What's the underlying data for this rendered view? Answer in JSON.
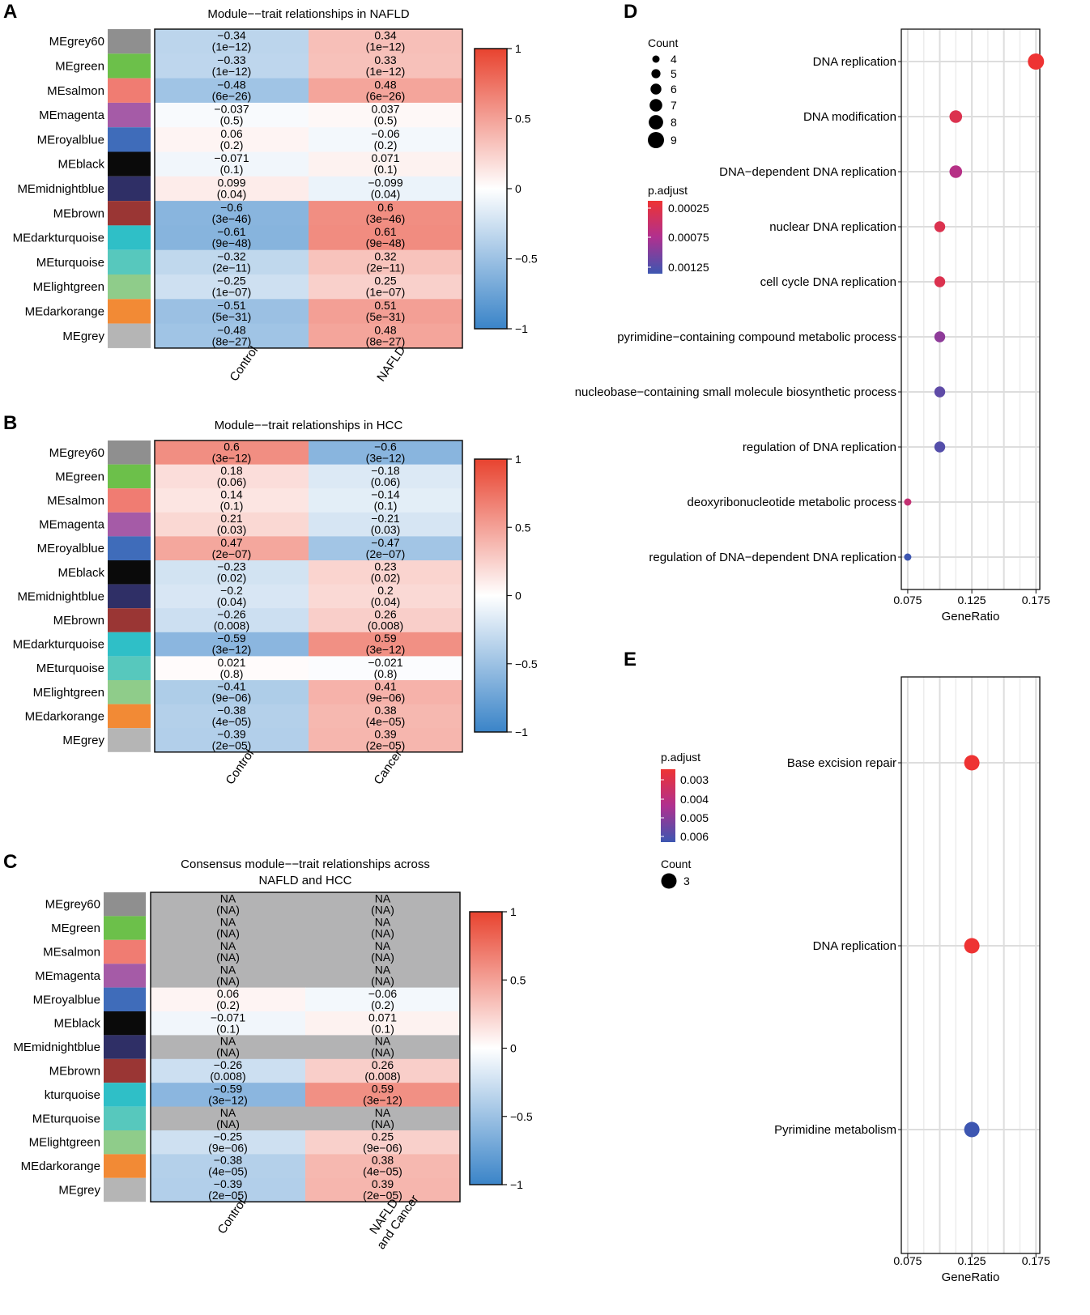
{
  "chart_data": [
    {
      "panel": "A",
      "type": "heatmap",
      "title": "Module−−trait relationships in NAFLD",
      "modules": [
        {
          "label": "MEgrey60",
          "color": "#8f8f8f"
        },
        {
          "label": "MEgreen",
          "color": "#6cc04a"
        },
        {
          "label": "MEsalmon",
          "color": "#f07c72"
        },
        {
          "label": "MEmagenta",
          "color": "#a55ba7"
        },
        {
          "label": "MEroyalblue",
          "color": "#3f6cba"
        },
        {
          "label": "MEblack",
          "color": "#0a0a0a"
        },
        {
          "label": "MEmidnightblue",
          "color": "#2f2f66"
        },
        {
          "label": "MEbrown",
          "color": "#9a3634"
        },
        {
          "label": "MEdarkturquoise",
          "color": "#2fbfc7"
        },
        {
          "label": "MEturquoise",
          "color": "#57c8bd"
        },
        {
          "label": "MElightgreen",
          "color": "#8fcc8a"
        },
        {
          "label": "MEdarkorange",
          "color": "#f28a35"
        },
        {
          "label": "MEgrey",
          "color": "#b5b5b5"
        }
      ],
      "columns": [
        "Control",
        "NAFLD"
      ],
      "values": [
        [
          -0.34,
          0.34
        ],
        [
          -0.33,
          0.33
        ],
        [
          -0.48,
          0.48
        ],
        [
          -0.037,
          0.037
        ],
        [
          0.06,
          -0.06
        ],
        [
          -0.071,
          0.071
        ],
        [
          0.099,
          -0.099
        ],
        [
          -0.6,
          0.6
        ],
        [
          -0.61,
          0.61
        ],
        [
          -0.32,
          0.32
        ],
        [
          -0.25,
          0.25
        ],
        [
          -0.51,
          0.51
        ],
        [
          -0.48,
          0.48
        ]
      ],
      "labels": [
        [
          "−0.34",
          "0.34"
        ],
        [
          "−0.33",
          "0.33"
        ],
        [
          "−0.48",
          "0.48"
        ],
        [
          "−0.037",
          "0.037"
        ],
        [
          "0.06",
          "−0.06"
        ],
        [
          "−0.071",
          "0.071"
        ],
        [
          "0.099",
          "−0.099"
        ],
        [
          "−0.6",
          "0.6"
        ],
        [
          "−0.61",
          "0.61"
        ],
        [
          "−0.32",
          "0.32"
        ],
        [
          "−0.25",
          "0.25"
        ],
        [
          "−0.51",
          "0.51"
        ],
        [
          "−0.48",
          "0.48"
        ]
      ],
      "pvalues": [
        [
          "(1e−12)",
          "(1e−12)"
        ],
        [
          "(1e−12)",
          "(1e−12)"
        ],
        [
          "(6e−26)",
          "(6e−26)"
        ],
        [
          "(0.5)",
          "(0.5)"
        ],
        [
          "(0.2)",
          "(0.2)"
        ],
        [
          "(0.1)",
          "(0.1)"
        ],
        [
          "(0.04)",
          "(0.04)"
        ],
        [
          "(3e−46)",
          "(3e−46)"
        ],
        [
          "(9e−48)",
          "(9e−48)"
        ],
        [
          "(2e−11)",
          "(2e−11)"
        ],
        [
          "(1e−07)",
          "(1e−07)"
        ],
        [
          "(5e−31)",
          "(5e−31)"
        ],
        [
          "(8e−27)",
          "(8e−27)"
        ]
      ],
      "colorbar": {
        "range": [
          -1,
          1
        ],
        "ticks": [
          "1",
          "0.5",
          "0",
          "−0.5",
          "−1"
        ]
      }
    },
    {
      "panel": "B",
      "type": "heatmap",
      "title": "Module−−trait relationships in HCC",
      "modules": [
        {
          "label": "MEgrey60",
          "color": "#8f8f8f"
        },
        {
          "label": "MEgreen",
          "color": "#6cc04a"
        },
        {
          "label": "MEsalmon",
          "color": "#f07c72"
        },
        {
          "label": "MEmagenta",
          "color": "#a55ba7"
        },
        {
          "label": "MEroyalblue",
          "color": "#3f6cba"
        },
        {
          "label": "MEblack",
          "color": "#0a0a0a"
        },
        {
          "label": "MEmidnightblue",
          "color": "#2f2f66"
        },
        {
          "label": "MEbrown",
          "color": "#9a3634"
        },
        {
          "label": "MEdarkturquoise",
          "color": "#2fbfc7"
        },
        {
          "label": "MEturquoise",
          "color": "#57c8bd"
        },
        {
          "label": "MElightgreen",
          "color": "#8fcc8a"
        },
        {
          "label": "MEdarkorange",
          "color": "#f28a35"
        },
        {
          "label": "MEgrey",
          "color": "#b5b5b5"
        }
      ],
      "columns": [
        "Control",
        "Cancer"
      ],
      "values": [
        [
          0.6,
          -0.6
        ],
        [
          0.18,
          -0.18
        ],
        [
          0.14,
          -0.14
        ],
        [
          0.21,
          -0.21
        ],
        [
          0.47,
          -0.47
        ],
        [
          -0.23,
          0.23
        ],
        [
          -0.2,
          0.2
        ],
        [
          -0.26,
          0.26
        ],
        [
          -0.59,
          0.59
        ],
        [
          0.021,
          -0.021
        ],
        [
          -0.41,
          0.41
        ],
        [
          -0.38,
          0.38
        ],
        [
          -0.39,
          0.39
        ]
      ],
      "labels": [
        [
          "0.6",
          "−0.6"
        ],
        [
          "0.18",
          "−0.18"
        ],
        [
          "0.14",
          "−0.14"
        ],
        [
          "0.21",
          "−0.21"
        ],
        [
          "0.47",
          "−0.47"
        ],
        [
          "−0.23",
          "0.23"
        ],
        [
          "−0.2",
          "0.2"
        ],
        [
          "−0.26",
          "0.26"
        ],
        [
          "−0.59",
          "0.59"
        ],
        [
          "0.021",
          "−0.021"
        ],
        [
          "−0.41",
          "0.41"
        ],
        [
          "−0.38",
          "0.38"
        ],
        [
          "−0.39",
          "0.39"
        ]
      ],
      "pvalues": [
        [
          "(3e−12)",
          "(3e−12)"
        ],
        [
          "(0.06)",
          "(0.06)"
        ],
        [
          "(0.1)",
          "(0.1)"
        ],
        [
          "(0.03)",
          "(0.03)"
        ],
        [
          "(2e−07)",
          "(2e−07)"
        ],
        [
          "(0.02)",
          "(0.02)"
        ],
        [
          "(0.04)",
          "(0.04)"
        ],
        [
          "(0.008)",
          "(0.008)"
        ],
        [
          "(3e−12)",
          "(3e−12)"
        ],
        [
          "(0.8)",
          "(0.8)"
        ],
        [
          "(9e−06)",
          "(9e−06)"
        ],
        [
          "(4e−05)",
          "(4e−05)"
        ],
        [
          "(2e−05)",
          "(2e−05)"
        ]
      ],
      "colorbar": {
        "range": [
          -1,
          1
        ],
        "ticks": [
          "1",
          "0.5",
          "0",
          "−0.5",
          "−1"
        ]
      }
    },
    {
      "panel": "C",
      "type": "heatmap",
      "title": "Consensus module−−trait relationships across",
      "title2": "NAFLD and HCC",
      "modules": [
        {
          "label": "MEgrey60",
          "color": "#8f8f8f"
        },
        {
          "label": "MEgreen",
          "color": "#6cc04a"
        },
        {
          "label": "MEsalmon",
          "color": "#f07c72"
        },
        {
          "label": "MEmagenta",
          "color": "#a55ba7"
        },
        {
          "label": "MEroyalblue",
          "color": "#3f6cba"
        },
        {
          "label": "MEblack",
          "color": "#0a0a0a"
        },
        {
          "label": "MEmidnightblue",
          "color": "#2f2f66"
        },
        {
          "label": "MEbrown",
          "color": "#9a3634"
        },
        {
          "label": "kturquoise",
          "color": "#2fbfc7"
        },
        {
          "label": "MEturquoise",
          "color": "#57c8bd"
        },
        {
          "label": "MElightgreen",
          "color": "#8fcc8a"
        },
        {
          "label": "MEdarkorange",
          "color": "#f28a35"
        },
        {
          "label": "MEgrey",
          "color": "#b5b5b5"
        }
      ],
      "columns": [
        "Control",
        "NAFLD",
        "and Cancer"
      ],
      "values": [
        [
          null,
          null
        ],
        [
          null,
          null
        ],
        [
          null,
          null
        ],
        [
          null,
          null
        ],
        [
          0.06,
          -0.06
        ],
        [
          -0.071,
          0.071
        ],
        [
          null,
          null
        ],
        [
          -0.26,
          0.26
        ],
        [
          -0.59,
          0.59
        ],
        [
          null,
          null
        ],
        [
          -0.25,
          0.25
        ],
        [
          -0.38,
          0.38
        ],
        [
          -0.39,
          0.39
        ]
      ],
      "labels": [
        [
          "NA",
          "NA"
        ],
        [
          "NA",
          "NA"
        ],
        [
          "NA",
          "NA"
        ],
        [
          "NA",
          "NA"
        ],
        [
          "0.06",
          "−0.06"
        ],
        [
          "−0.071",
          "0.071"
        ],
        [
          "NA",
          "NA"
        ],
        [
          "−0.26",
          "0.26"
        ],
        [
          "−0.59",
          "0.59"
        ],
        [
          "NA",
          "NA"
        ],
        [
          "−0.25",
          "0.25"
        ],
        [
          "−0.38",
          "0.38"
        ],
        [
          "−0.39",
          "0.39"
        ]
      ],
      "pvalues": [
        [
          "(NA)",
          "(NA)"
        ],
        [
          "(NA)",
          "(NA)"
        ],
        [
          "(NA)",
          "(NA)"
        ],
        [
          "(NA)",
          "(NA)"
        ],
        [
          "(0.2)",
          "(0.2)"
        ],
        [
          "(0.1)",
          "(0.1)"
        ],
        [
          "(NA)",
          "(NA)"
        ],
        [
          "(0.008)",
          "(0.008)"
        ],
        [
          "(3e−12)",
          "(3e−12)"
        ],
        [
          "(NA)",
          "(NA)"
        ],
        [
          "(9e−06)",
          "(9e−06)"
        ],
        [
          "(4e−05)",
          "(4e−05)"
        ],
        [
          "(2e−05)",
          "(2e−05)"
        ]
      ],
      "colorbar": {
        "range": [
          -1,
          1
        ],
        "ticks": [
          "1",
          "0.5",
          "0",
          "−0.5",
          "−1"
        ]
      }
    },
    {
      "panel": "D",
      "type": "scatter",
      "xlabel": "GeneRatio",
      "xlim": [
        0.07,
        0.178
      ],
      "xticks": [
        "0.075",
        "0.125",
        "0.175"
      ],
      "terms": [
        {
          "term": "DNA replication",
          "gene_ratio": 0.175,
          "count": 9,
          "p_adjust": 0.0001
        },
        {
          "term": "DNA modification",
          "gene_ratio": 0.1125,
          "count": 7,
          "p_adjust": 0.0004
        },
        {
          "term": "DNA−dependent DNA replication",
          "gene_ratio": 0.1125,
          "count": 7,
          "p_adjust": 0.0007
        },
        {
          "term": "nuclear DNA replication",
          "gene_ratio": 0.1,
          "count": 6,
          "p_adjust": 0.0004
        },
        {
          "term": "cell cycle DNA replication",
          "gene_ratio": 0.1,
          "count": 6,
          "p_adjust": 0.0004
        },
        {
          "term": "pyrimidine−containing compound metabolic process",
          "gene_ratio": 0.1,
          "count": 6,
          "p_adjust": 0.0009
        },
        {
          "term": "nucleobase−containing small molecule biosynthetic process",
          "gene_ratio": 0.1,
          "count": 6,
          "p_adjust": 0.0011
        },
        {
          "term": "regulation of DNA replication",
          "gene_ratio": 0.1,
          "count": 6,
          "p_adjust": 0.00115
        },
        {
          "term": "deoxyribonucleotide metabolic process",
          "gene_ratio": 0.075,
          "count": 4,
          "p_adjust": 0.0006
        },
        {
          "term": "regulation of DNA−dependent DNA replication",
          "gene_ratio": 0.075,
          "count": 4,
          "p_adjust": 0.00135
        }
      ],
      "size_legend": {
        "title": "Count",
        "values": [
          "4",
          "5",
          "6",
          "7",
          "8",
          "9"
        ]
      },
      "color_legend": {
        "title": "p.adjust",
        "labels": [
          "0.00025",
          "0.00075",
          "0.00125"
        ],
        "colors": [
          "#ee3333",
          "#b0308f",
          "#3d56b1"
        ]
      }
    },
    {
      "panel": "E",
      "type": "scatter",
      "xlabel": "GeneRatio",
      "xlim": [
        0.07,
        0.178
      ],
      "xticks": [
        "0.075",
        "0.125",
        "0.175"
      ],
      "terms": [
        {
          "term": "Base excision repair",
          "gene_ratio": 0.125,
          "count": 3,
          "p_adjust": 0.0028
        },
        {
          "term": "DNA replication",
          "gene_ratio": 0.125,
          "count": 3,
          "p_adjust": 0.0028
        },
        {
          "term": "Pyrimidine metabolism",
          "gene_ratio": 0.125,
          "count": 3,
          "p_adjust": 0.0062
        }
      ],
      "size_legend": {
        "title": "Count",
        "values": [
          "3"
        ]
      },
      "color_legend": {
        "title": "p.adjust",
        "labels": [
          "0.003",
          "0.004",
          "0.005",
          "0.006"
        ],
        "colors": [
          "#ee3333",
          "#b0308f",
          "#3d56b1"
        ]
      }
    }
  ]
}
